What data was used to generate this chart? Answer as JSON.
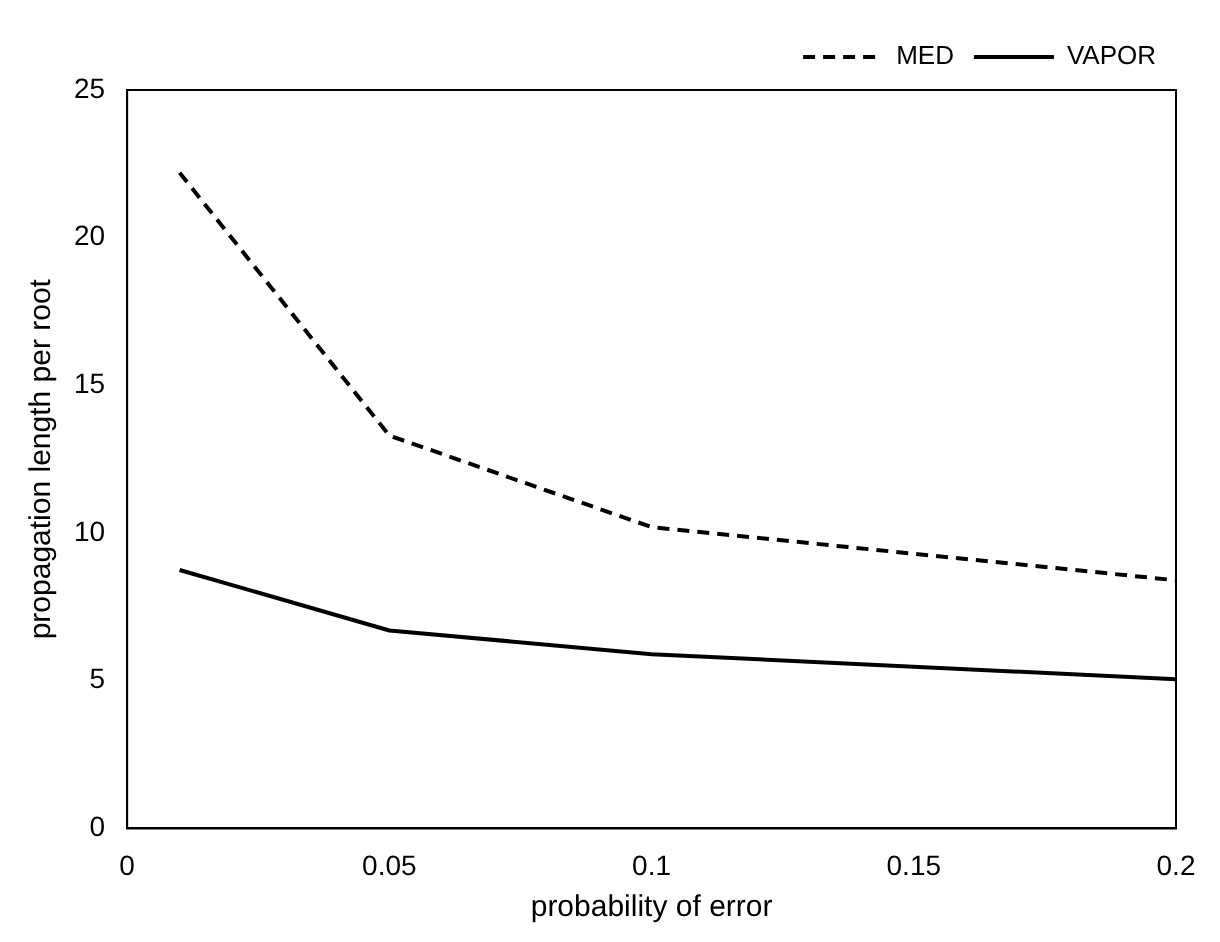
{
  "chart_data": {
    "type": "line",
    "xlabel": "probability of error",
    "ylabel": "propagation length per root",
    "x": [
      0.01,
      0.05,
      0.1,
      0.2
    ],
    "series": [
      {
        "name": "MED",
        "color": "#000000",
        "line_style": "dashed",
        "values": [
          22.2,
          13.3,
          10.2,
          8.4
        ]
      },
      {
        "name": "VAPOR",
        "color": "#000000",
        "line_style": "solid",
        "values": [
          8.75,
          6.7,
          5.9,
          5.05
        ]
      }
    ],
    "xlim": [
      0,
      0.2
    ],
    "xticks": [
      0,
      0.05,
      0.1,
      0.15,
      0.2
    ],
    "ylim": [
      0,
      25
    ],
    "yticks": [
      0,
      5,
      10,
      15,
      20,
      25
    ],
    "grid": false,
    "legend": "top right",
    "marker": "none"
  }
}
